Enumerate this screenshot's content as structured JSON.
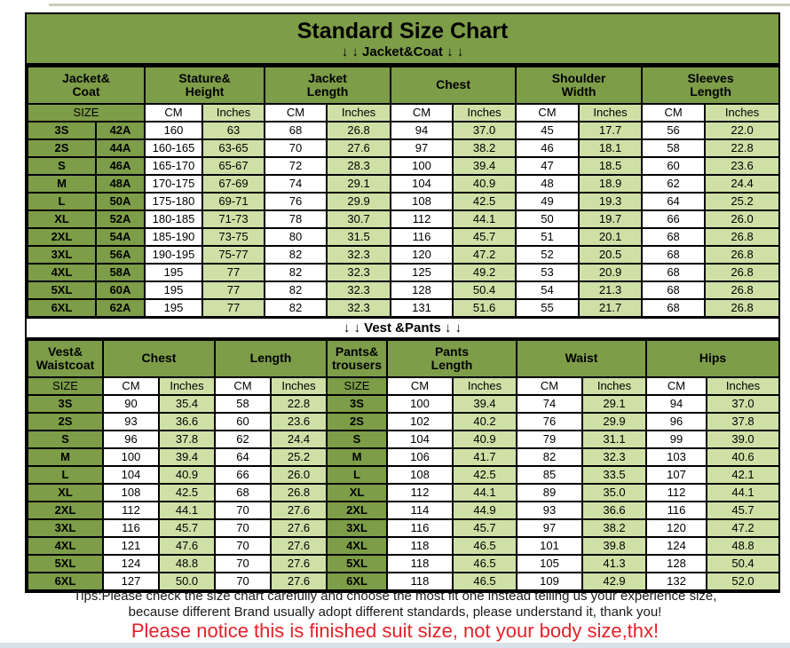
{
  "colors": {
    "header_green": "#7d9d48",
    "row_light_green": "#cfe0a6",
    "border_black": "#000000",
    "notice_red": "#e62129",
    "tips_text": "#1a1a1a"
  },
  "header": {
    "title": "Standard Size Chart",
    "jacket_separator": "↓ ↓  Jacket&Coat ↓ ↓",
    "vest_separator": "↓ ↓  Vest &Pants ↓ ↓"
  },
  "footer": {
    "tips_line1": "Tips:Please check the size chart carefully and choose the most fit one instead telling us your experience size,",
    "tips_line2": "because different Brand usually adopt different standards, please understand it, thank you!",
    "notice": "Please notice this is finished suit size, not your body size,thx!"
  },
  "chart_data": [
    {
      "type": "table",
      "title": "Jacket&Coat",
      "column_groups": [
        "Jacket&\nCoat",
        "Stature&\nHeight",
        "Jacket\nLength",
        "Chest",
        "Shoulder\nWidth",
        "Sleeves\nLength"
      ],
      "subheader": [
        "SIZE",
        "CM",
        "Inches",
        "CM",
        "Inches",
        "CM",
        "Inches",
        "CM",
        "Inches",
        "CM",
        "Inches"
      ],
      "rows": [
        [
          "3S",
          "42A",
          "160",
          "63",
          "68",
          "26.8",
          "94",
          "37.0",
          "45",
          "17.7",
          "56",
          "22.0"
        ],
        [
          "2S",
          "44A",
          "160-165",
          "63-65",
          "70",
          "27.6",
          "97",
          "38.2",
          "46",
          "18.1",
          "58",
          "22.8"
        ],
        [
          "S",
          "46A",
          "165-170",
          "65-67",
          "72",
          "28.3",
          "100",
          "39.4",
          "47",
          "18.5",
          "60",
          "23.6"
        ],
        [
          "M",
          "48A",
          "170-175",
          "67-69",
          "74",
          "29.1",
          "104",
          "40.9",
          "48",
          "18.9",
          "62",
          "24.4"
        ],
        [
          "L",
          "50A",
          "175-180",
          "69-71",
          "76",
          "29.9",
          "108",
          "42.5",
          "49",
          "19.3",
          "64",
          "25.2"
        ],
        [
          "XL",
          "52A",
          "180-185",
          "71-73",
          "78",
          "30.7",
          "112",
          "44.1",
          "50",
          "19.7",
          "66",
          "26.0"
        ],
        [
          "2XL",
          "54A",
          "185-190",
          "73-75",
          "80",
          "31.5",
          "116",
          "45.7",
          "51",
          "20.1",
          "68",
          "26.8"
        ],
        [
          "3XL",
          "56A",
          "190-195",
          "75-77",
          "82",
          "32.3",
          "120",
          "47.2",
          "52",
          "20.5",
          "68",
          "26.8"
        ],
        [
          "4XL",
          "58A",
          "195",
          "77",
          "82",
          "32.3",
          "125",
          "49.2",
          "53",
          "20.9",
          "68",
          "26.8"
        ],
        [
          "5XL",
          "60A",
          "195",
          "77",
          "82",
          "32.3",
          "128",
          "50.4",
          "54",
          "21.3",
          "68",
          "26.8"
        ],
        [
          "6XL",
          "62A",
          "195",
          "77",
          "82",
          "32.3",
          "131",
          "51.6",
          "55",
          "21.7",
          "68",
          "26.8"
        ]
      ]
    },
    {
      "type": "table",
      "title": "Vest &Pants",
      "column_groups": [
        "Vest&\nWaistcoat",
        "Chest",
        "Length",
        "Pants&\ntrousers",
        "Pants\nLength",
        "Waist",
        "Hips"
      ],
      "subheader": [
        "SIZE",
        "CM",
        "Inches",
        "CM",
        "Inches",
        "SIZE",
        "CM",
        "Inches",
        "CM",
        "Inches",
        "CM",
        "Inches"
      ],
      "rows": [
        [
          "3S",
          "90",
          "35.4",
          "58",
          "22.8",
          "3S",
          "100",
          "39.4",
          "74",
          "29.1",
          "94",
          "37.0"
        ],
        [
          "2S",
          "93",
          "36.6",
          "60",
          "23.6",
          "2S",
          "102",
          "40.2",
          "76",
          "29.9",
          "96",
          "37.8"
        ],
        [
          "S",
          "96",
          "37.8",
          "62",
          "24.4",
          "S",
          "104",
          "40.9",
          "79",
          "31.1",
          "99",
          "39.0"
        ],
        [
          "M",
          "100",
          "39.4",
          "64",
          "25.2",
          "M",
          "106",
          "41.7",
          "82",
          "32.3",
          "103",
          "40.6"
        ],
        [
          "L",
          "104",
          "40.9",
          "66",
          "26.0",
          "L",
          "108",
          "42.5",
          "85",
          "33.5",
          "107",
          "42.1"
        ],
        [
          "XL",
          "108",
          "42.5",
          "68",
          "26.8",
          "XL",
          "112",
          "44.1",
          "89",
          "35.0",
          "112",
          "44.1"
        ],
        [
          "2XL",
          "112",
          "44.1",
          "70",
          "27.6",
          "2XL",
          "114",
          "44.9",
          "93",
          "36.6",
          "116",
          "45.7"
        ],
        [
          "3XL",
          "116",
          "45.7",
          "70",
          "27.6",
          "3XL",
          "116",
          "45.7",
          "97",
          "38.2",
          "120",
          "47.2"
        ],
        [
          "4XL",
          "121",
          "47.6",
          "70",
          "27.6",
          "4XL",
          "118",
          "46.5",
          "101",
          "39.8",
          "124",
          "48.8"
        ],
        [
          "5XL",
          "124",
          "48.8",
          "70",
          "27.6",
          "5XL",
          "118",
          "46.5",
          "105",
          "41.3",
          "128",
          "50.4"
        ],
        [
          "6XL",
          "127",
          "50.0",
          "70",
          "27.6",
          "6XL",
          "118",
          "46.5",
          "109",
          "42.9",
          "132",
          "52.0"
        ]
      ]
    }
  ]
}
